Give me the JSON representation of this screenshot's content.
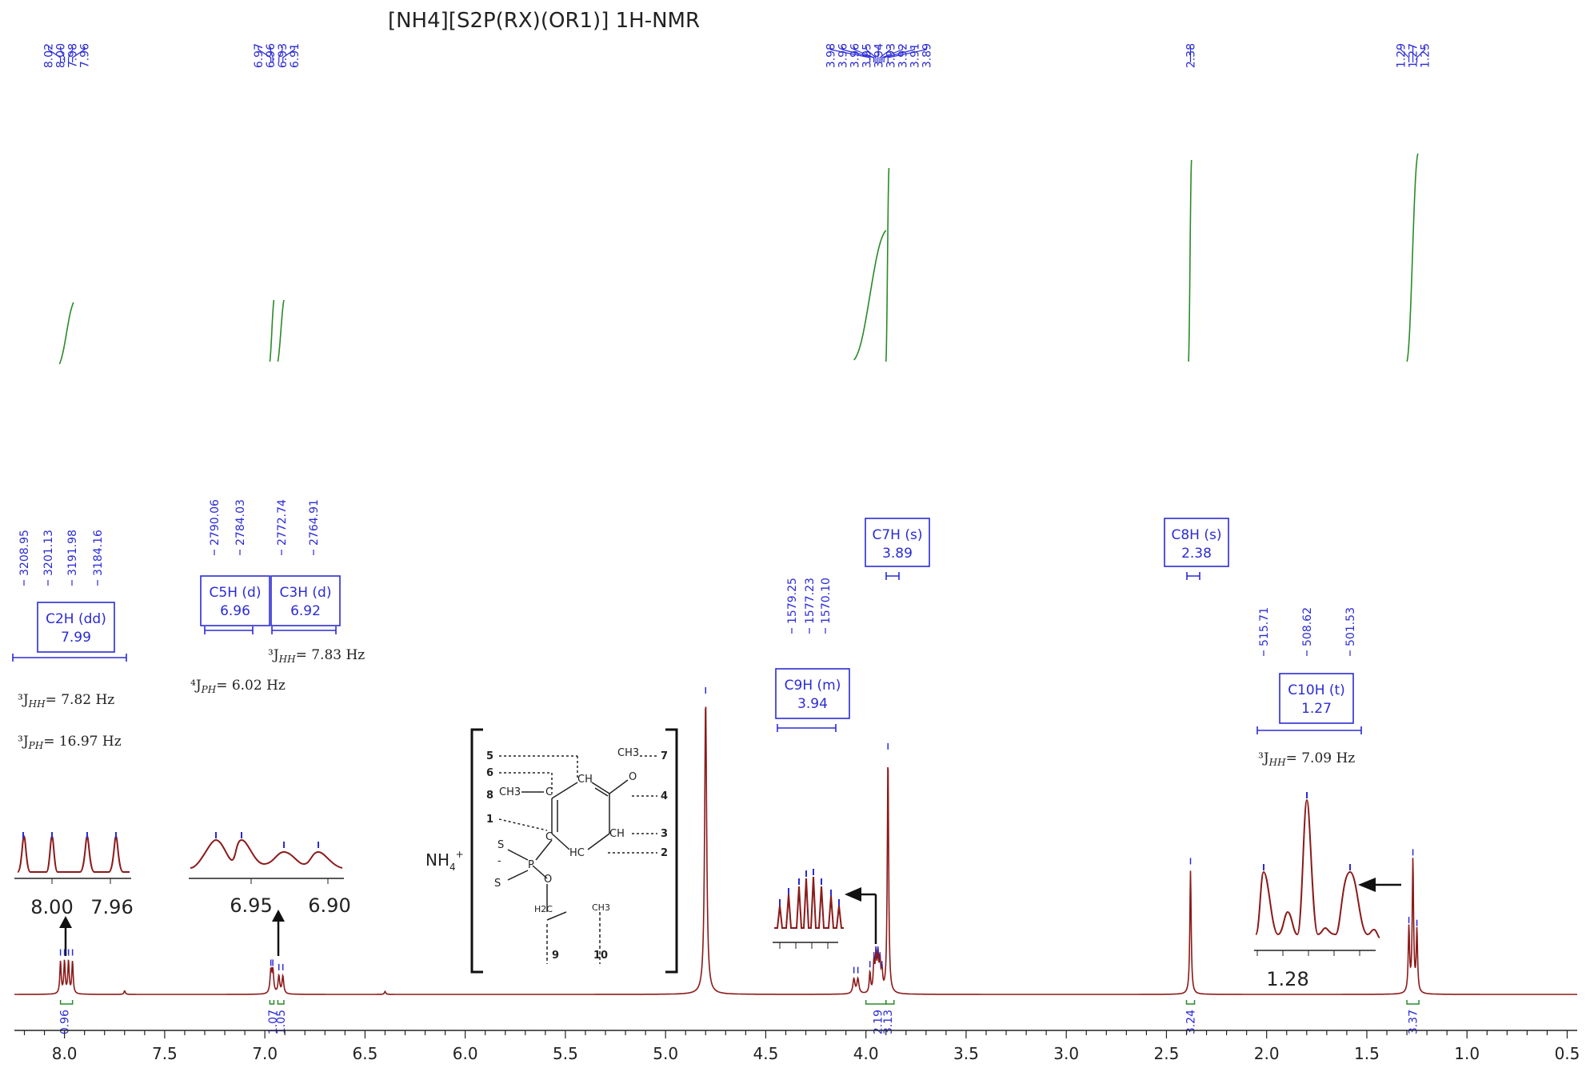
{
  "chart_data": {
    "type": "line",
    "title": "[NH4][S2P(RX)(OR1)] 1H-NMR",
    "xlabel": "",
    "ylabel": "",
    "xlim": [
      8.25,
      0.45
    ],
    "x_reversed": true,
    "grid": false,
    "x_ticks": [
      {
        "value": 8.0,
        "label": "8.0"
      },
      {
        "value": 7.5,
        "label": "7.5"
      },
      {
        "value": 7.0,
        "label": "7.0"
      },
      {
        "value": 6.5,
        "label": "6.5"
      },
      {
        "value": 6.0,
        "label": "6.0"
      },
      {
        "value": 5.5,
        "label": "5.5"
      },
      {
        "value": 5.0,
        "label": "5.0"
      },
      {
        "value": 4.5,
        "label": "4.5"
      },
      {
        "value": 4.0,
        "label": "4.0"
      },
      {
        "value": 3.5,
        "label": "3.5"
      },
      {
        "value": 3.0,
        "label": "3.0"
      },
      {
        "value": 2.5,
        "label": "2.5"
      },
      {
        "value": 2.0,
        "label": "2.0"
      },
      {
        "value": 1.5,
        "label": "1.5"
      },
      {
        "value": 1.0,
        "label": "1.0"
      },
      {
        "value": 0.5,
        "label": "0.5"
      }
    ],
    "spectrum_color": "#8b1a1a",
    "integral_color": "#2a8a2a",
    "label_color": "#2b2bd6",
    "peaks": [
      {
        "ppm": 8.02,
        "height": 0.11,
        "width": 0.004
      },
      {
        "ppm": 8.0,
        "height": 0.11,
        "width": 0.004
      },
      {
        "ppm": 7.98,
        "height": 0.11,
        "width": 0.004
      },
      {
        "ppm": 7.96,
        "height": 0.11,
        "width": 0.004
      },
      {
        "ppm": 7.7,
        "height": 0.012,
        "width": 0.004
      },
      {
        "ppm": 6.97,
        "height": 0.075,
        "width": 0.005
      },
      {
        "ppm": 6.96,
        "height": 0.075,
        "width": 0.005
      },
      {
        "ppm": 6.93,
        "height": 0.06,
        "width": 0.005
      },
      {
        "ppm": 6.91,
        "height": 0.06,
        "width": 0.005
      },
      {
        "ppm": 6.4,
        "height": 0.01,
        "width": 0.004
      },
      {
        "ppm": 4.8,
        "height": 1.0,
        "width": 0.006
      },
      {
        "ppm": 4.06,
        "height": 0.05,
        "width": 0.006
      },
      {
        "ppm": 4.04,
        "height": 0.05,
        "width": 0.006
      },
      {
        "ppm": 3.98,
        "height": 0.07,
        "width": 0.004
      },
      {
        "ppm": 3.96,
        "height": 0.1,
        "width": 0.004
      },
      {
        "ppm": 3.95,
        "height": 0.12,
        "width": 0.004
      },
      {
        "ppm": 3.94,
        "height": 0.12,
        "width": 0.004
      },
      {
        "ppm": 3.93,
        "height": 0.1,
        "width": 0.004
      },
      {
        "ppm": 3.92,
        "height": 0.07,
        "width": 0.004
      },
      {
        "ppm": 3.89,
        "height": 0.81,
        "width": 0.004
      },
      {
        "ppm": 2.38,
        "height": 0.42,
        "width": 0.004
      },
      {
        "ppm": 1.29,
        "height": 0.22,
        "width": 0.004
      },
      {
        "ppm": 1.27,
        "height": 0.45,
        "width": 0.004
      },
      {
        "ppm": 1.25,
        "height": 0.21,
        "width": 0.004
      }
    ],
    "peak_labels": [
      {
        "ppm": 8.02,
        "label": "8.02"
      },
      {
        "ppm": 8.0,
        "label": "8.00"
      },
      {
        "ppm": 7.98,
        "label": "7.98"
      },
      {
        "ppm": 7.96,
        "label": "7.96"
      },
      {
        "ppm": 6.97,
        "label": "6.97"
      },
      {
        "ppm": 6.96,
        "label": "6.96"
      },
      {
        "ppm": 6.93,
        "label": "6.93"
      },
      {
        "ppm": 6.91,
        "label": "6.91"
      },
      {
        "ppm": 3.98,
        "label": "3.98"
      },
      {
        "ppm": 3.96,
        "label": "3.96"
      },
      {
        "ppm": 3.96,
        "label": "3.96"
      },
      {
        "ppm": 3.95,
        "label": "3.95"
      },
      {
        "ppm": 3.94,
        "label": "3.94"
      },
      {
        "ppm": 3.93,
        "label": "3.93"
      },
      {
        "ppm": 3.92,
        "label": "3.92"
      },
      {
        "ppm": 3.91,
        "label": "3.91"
      },
      {
        "ppm": 3.89,
        "label": "3.89"
      },
      {
        "ppm": 2.38,
        "label": "2.38"
      },
      {
        "ppm": 1.29,
        "label": "1.29"
      },
      {
        "ppm": 1.27,
        "label": "1.27"
      },
      {
        "ppm": 1.25,
        "label": "1.25"
      }
    ],
    "integrals": [
      {
        "ppm": 8.0,
        "label": "0.96"
      },
      {
        "ppm": 6.96,
        "label": "1.07"
      },
      {
        "ppm": 6.92,
        "label": "1.05"
      },
      {
        "ppm": 3.94,
        "label": "2.19"
      },
      {
        "ppm": 3.89,
        "label": "3.13"
      },
      {
        "ppm": 2.38,
        "label": "3.24"
      },
      {
        "ppm": 1.27,
        "label": "3.37"
      }
    ],
    "multiplets": [
      {
        "name": "C2H (dd)",
        "shift": "7.99",
        "hz": [
          "3208.95",
          "3201.13",
          "3191.98",
          "3184.16"
        ]
      },
      {
        "name": "C5H (d)",
        "shift": "6.96",
        "hz": [
          "2790.06",
          "2784.03"
        ]
      },
      {
        "name": "C3H (d)",
        "shift": "6.92",
        "hz": [
          "2772.74",
          "2764.91"
        ]
      },
      {
        "name": "C7H (s)",
        "shift": "3.89",
        "hz": []
      },
      {
        "name": "C9H (m)",
        "shift": "3.94",
        "hz": [
          "1579.25",
          "1577.23",
          "1570.10"
        ]
      },
      {
        "name": "C8H (s)",
        "shift": "2.38",
        "hz": []
      },
      {
        "name": "C10H (t)",
        "shift": "1.27",
        "hz": [
          "515.71",
          "508.62",
          "501.53"
        ]
      }
    ],
    "annotations": {
      "c2h_j1": "³J",
      "c2h_j1_sub": "HH",
      "c2h_j1_val": "= 7.82 Hz",
      "c2h_j2": "³J",
      "c2h_j2_sub": "PH",
      "c2h_j2_val": "= 16.97 Hz",
      "c5h_j": "⁴J",
      "c5h_j_sub": "PH",
      "c5h_j_val": "= 6.02 Hz",
      "c3h_j": "³J",
      "c3h_j_sub": "HH",
      "c3h_j_val": "= 7.83 Hz",
      "c10h_j": "³J",
      "c10h_j_sub": "HH",
      "c10h_j_val": "= 7.09 Hz"
    },
    "insets": [
      {
        "name": "c2h-inset",
        "ticks": [
          "8.00",
          "7.96"
        ]
      },
      {
        "name": "c5h-inset",
        "ticks": [
          "6.95",
          "6.90"
        ]
      },
      {
        "name": "c9h-inset",
        "ticks": []
      },
      {
        "name": "c10h-inset",
        "ticks": [
          "1.28"
        ]
      }
    ],
    "structure": {
      "cation": "NH",
      "cation_sub": "4",
      "cation_sup": "+",
      "atom_labels": {
        "ch3_top": "CH3",
        "ch_top": "CH",
        "ch3_left": "CH3",
        "c_left": "C",
        "c_left2": "C",
        "ch_right": "CH",
        "hc_bottom": "HC",
        "o_top": "O",
        "s1": "S",
        "s2": "S",
        "minus": "-",
        "p": "P",
        "o_p": "O",
        "h2c": "H2C",
        "ch3_end": "CH3"
      },
      "numbers": [
        "5",
        "6",
        "8",
        "1",
        "7",
        "4",
        "3",
        "2",
        "9",
        "10"
      ]
    }
  }
}
